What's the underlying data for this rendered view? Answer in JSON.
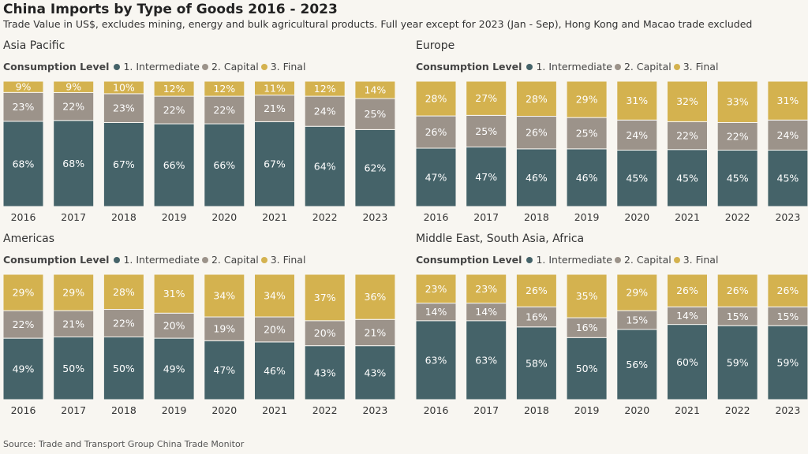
{
  "header": {
    "title": "China Imports by Type of Goods 2016 - 2023",
    "subtitle": "Trade Value in US$, excludes mining, energy and bulk agricultural products. Full year except for 2023 (Jan - Sep), Hong Kong and Macao trade excluded"
  },
  "footer": {
    "source": "Source: Trade and Transport Group China Trade Monitor"
  },
  "legend": {
    "title": "Consumption Level",
    "items": [
      {
        "label": "1. Intermediate",
        "color": "#456369"
      },
      {
        "label": "2. Capital",
        "color": "#9c938a"
      },
      {
        "label": "3. Final",
        "color": "#d4b24f"
      }
    ]
  },
  "chart_data": [
    {
      "type": "bar",
      "stacked": true,
      "title": "Asia Pacific",
      "categories": [
        "2016",
        "2017",
        "2018",
        "2019",
        "2020",
        "2021",
        "2022",
        "2023"
      ],
      "ylim": [
        0,
        100
      ],
      "series": [
        {
          "name": "1. Intermediate",
          "values": [
            68,
            68,
            67,
            66,
            66,
            67,
            64,
            62
          ]
        },
        {
          "name": "2. Capital",
          "values": [
            23,
            22,
            23,
            22,
            22,
            21,
            24,
            25
          ]
        },
        {
          "name": "3. Final",
          "values": [
            9,
            9,
            10,
            12,
            12,
            11,
            12,
            14
          ]
        }
      ]
    },
    {
      "type": "bar",
      "stacked": true,
      "title": "Europe",
      "categories": [
        "2016",
        "2017",
        "2018",
        "2019",
        "2020",
        "2021",
        "2022",
        "2023"
      ],
      "ylim": [
        0,
        100
      ],
      "series": [
        {
          "name": "1. Intermediate",
          "values": [
            47,
            47,
            46,
            46,
            45,
            45,
            45,
            45
          ]
        },
        {
          "name": "2. Capital",
          "values": [
            26,
            25,
            26,
            25,
            24,
            22,
            22,
            24
          ]
        },
        {
          "name": "3. Final",
          "values": [
            28,
            27,
            28,
            29,
            31,
            32,
            33,
            31
          ]
        }
      ]
    },
    {
      "type": "bar",
      "stacked": true,
      "title": "Americas",
      "categories": [
        "2016",
        "2017",
        "2018",
        "2019",
        "2020",
        "2021",
        "2022",
        "2023"
      ],
      "ylim": [
        0,
        100
      ],
      "series": [
        {
          "name": "1. Intermediate",
          "values": [
            49,
            50,
            50,
            49,
            47,
            46,
            43,
            43
          ]
        },
        {
          "name": "2. Capital",
          "values": [
            22,
            21,
            22,
            20,
            19,
            20,
            20,
            21
          ]
        },
        {
          "name": "3. Final",
          "values": [
            29,
            29,
            28,
            31,
            34,
            34,
            37,
            36
          ]
        }
      ]
    },
    {
      "type": "bar",
      "stacked": true,
      "title": "Middle East, South Asia, Africa",
      "categories": [
        "2016",
        "2017",
        "2018",
        "2019",
        "2020",
        "2021",
        "2022",
        "2023"
      ],
      "ylim": [
        0,
        100
      ],
      "series": [
        {
          "name": "1. Intermediate",
          "values": [
            63,
            63,
            58,
            50,
            56,
            60,
            59,
            59
          ]
        },
        {
          "name": "2. Capital",
          "values": [
            14,
            14,
            16,
            16,
            15,
            14,
            15,
            15
          ]
        },
        {
          "name": "3. Final",
          "values": [
            23,
            23,
            26,
            35,
            29,
            26,
            26,
            26
          ]
        }
      ]
    }
  ]
}
